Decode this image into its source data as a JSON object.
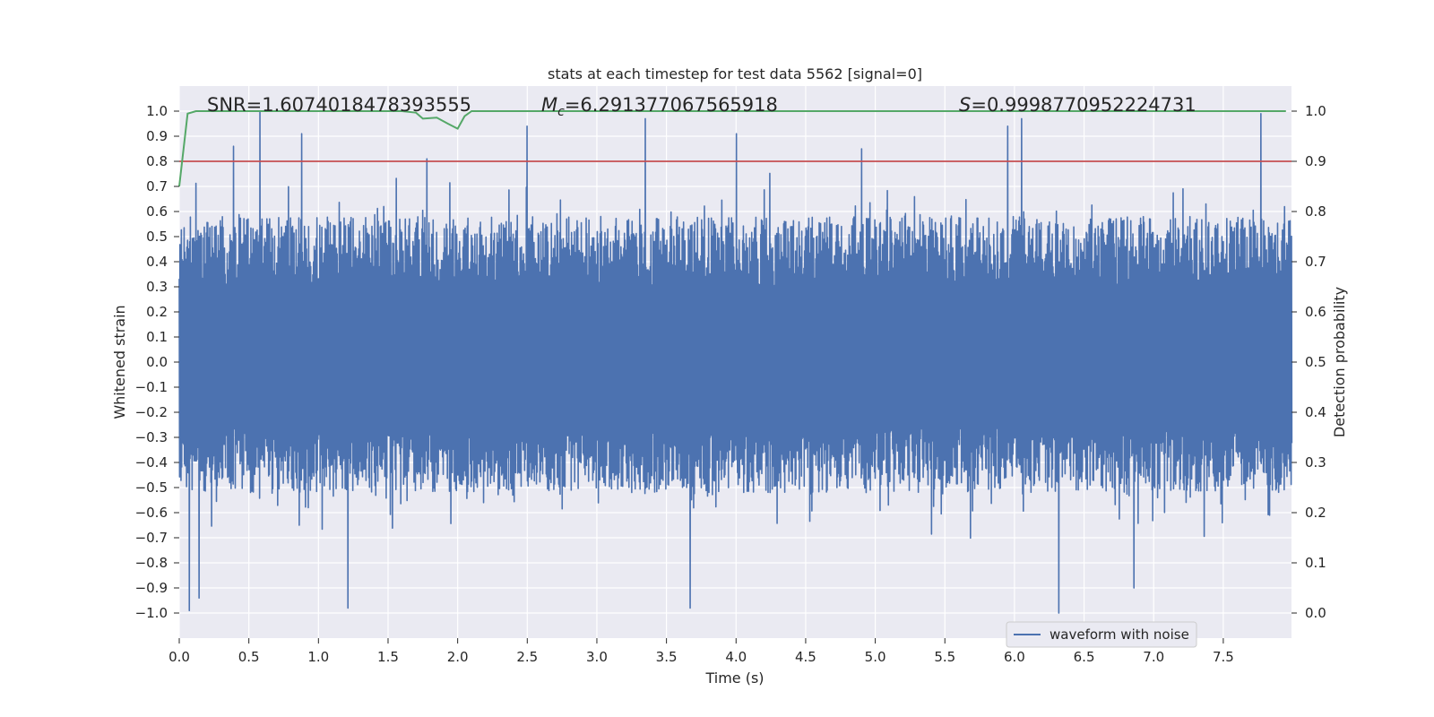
{
  "chart_data": {
    "type": "line",
    "title": "stats at each timestep for test data 5562 [signal=0]",
    "xlabel": "Time (s)",
    "ylabel": "Whitened strain",
    "y2label": "Detection probability",
    "xlim": [
      0.0,
      7.99
    ],
    "ylim": [
      -1.1,
      1.1
    ],
    "y2lim": [
      -0.05,
      1.05
    ],
    "xticks": [
      0.0,
      0.5,
      1.0,
      1.5,
      2.0,
      2.5,
      3.0,
      3.5,
      4.0,
      4.5,
      5.0,
      5.5,
      6.0,
      6.5,
      7.0,
      7.5
    ],
    "xtick_labels": [
      "0.0",
      "0.5",
      "1.0",
      "1.5",
      "2.0",
      "2.5",
      "3.0",
      "3.5",
      "4.0",
      "4.5",
      "5.0",
      "5.5",
      "6.0",
      "6.5",
      "7.0",
      "7.5"
    ],
    "yticks": [
      1.0,
      0.9,
      0.8,
      0.7,
      0.6,
      0.5,
      0.4,
      0.3,
      0.2,
      0.1,
      0.0,
      -0.1,
      -0.2,
      -0.3,
      -0.4,
      -0.5,
      -0.6,
      -0.7,
      -0.8,
      -0.9,
      -1.0
    ],
    "ytick_labels": [
      "1.0",
      "0.9",
      "0.8",
      "0.7",
      "0.6",
      "0.5",
      "0.4",
      "0.3",
      "0.2",
      "0.1",
      "0.0",
      "−0.1",
      "−0.2",
      "−0.3",
      "−0.4",
      "−0.5",
      "−0.6",
      "−0.7",
      "−0.8",
      "−0.9",
      "−1.0"
    ],
    "y2ticks": [
      1.0,
      0.9,
      0.8,
      0.7,
      0.6,
      0.5,
      0.4,
      0.3,
      0.2,
      0.1,
      0.0
    ],
    "y2tick_labels": [
      "1.0",
      "0.9",
      "0.8",
      "0.7",
      "0.6",
      "0.5",
      "0.4",
      "0.3",
      "0.2",
      "0.1",
      "0.0"
    ],
    "grid": true,
    "legend": {
      "position": "lower-right",
      "entries": [
        "waveform with noise"
      ]
    },
    "series": [
      {
        "name": "waveform with noise",
        "axis": "left",
        "color": "#4c72b0",
        "style": "dense-noise",
        "sample_count": 1600,
        "envelope_typical": [
          -0.45,
          0.5
        ],
        "spikes": [
          {
            "x": 0.58,
            "y": 1.0
          },
          {
            "x": 0.39,
            "y": 0.86
          },
          {
            "x": 0.88,
            "y": 0.91
          },
          {
            "x": 1.78,
            "y": 0.81
          },
          {
            "x": 2.5,
            "y": 0.94
          },
          {
            "x": 3.35,
            "y": 0.97
          },
          {
            "x": 4.0,
            "y": 0.91
          },
          {
            "x": 4.9,
            "y": 0.85
          },
          {
            "x": 5.95,
            "y": 0.94
          },
          {
            "x": 6.05,
            "y": 0.97
          },
          {
            "x": 7.77,
            "y": 0.99
          },
          {
            "x": 0.07,
            "y": -0.99
          },
          {
            "x": 0.14,
            "y": -0.94
          },
          {
            "x": 1.21,
            "y": -0.98
          },
          {
            "x": 3.67,
            "y": -0.98
          },
          {
            "x": 6.32,
            "y": -1.0
          },
          {
            "x": 6.86,
            "y": -0.9
          }
        ]
      },
      {
        "name": "detection probability",
        "axis": "right",
        "color": "#55a868",
        "x": [
          0.0,
          0.06,
          0.12,
          1.6,
          1.7,
          1.75,
          1.85,
          1.93,
          2.0,
          2.05,
          2.1,
          7.95
        ],
        "y": [
          0.85,
          0.995,
          1.0,
          1.0,
          0.997,
          0.985,
          0.987,
          0.975,
          0.965,
          0.99,
          1.0,
          1.0
        ]
      },
      {
        "name": "threshold",
        "axis": "right",
        "color": "#c44e52",
        "x": [
          0.0,
          7.99
        ],
        "y": [
          0.9,
          0.9
        ]
      }
    ],
    "annotations": {
      "snr": "SNR=1.6074018478393555",
      "mc_symbol": "M",
      "mc_sub": "c",
      "mc_value": "=6.291377067565918",
      "s_symbol": "S",
      "s_value": "=0.9998770952224731"
    }
  }
}
